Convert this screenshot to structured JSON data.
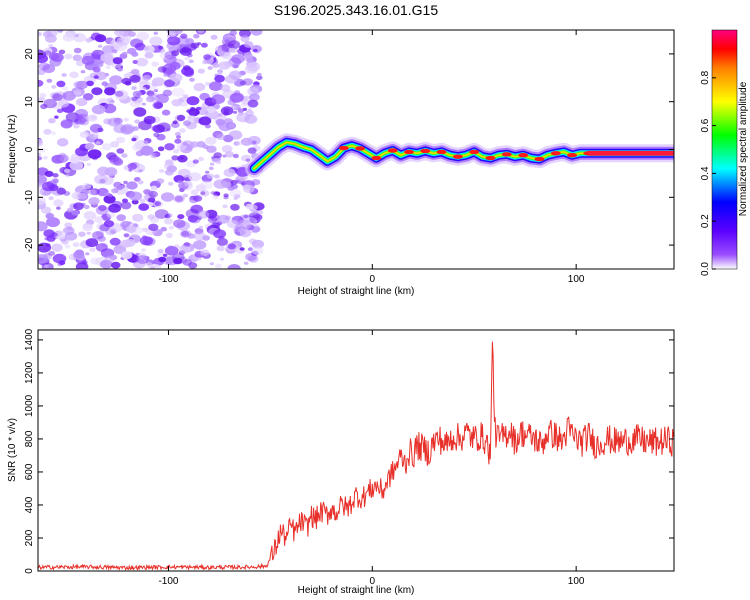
{
  "figure": {
    "title": "S196.2025.343.16.01.G15"
  },
  "chart_data": [
    {
      "type": "heatmap",
      "panel": "spectrogram",
      "xlabel": "Height of straight line (km)",
      "ylabel": "Frequency (Hz)",
      "xlim": [
        -164,
        148
      ],
      "ylim": [
        -25,
        25
      ],
      "xticks": [
        -100,
        0,
        100
      ],
      "xtick_labels": [
        "-100",
        "0",
        "100"
      ],
      "yticks": [
        -20,
        -10,
        0,
        10,
        20
      ],
      "ytick_labels": [
        "-20",
        "-10",
        "0",
        "10",
        "20"
      ],
      "noise_region_x": [
        -164,
        -58
      ],
      "signal_start_x": -58,
      "signal_track": [
        [
          -58,
          -4
        ],
        [
          -54,
          -2.5
        ],
        [
          -50,
          -1
        ],
        [
          -46,
          0.5
        ],
        [
          -42,
          1.5
        ],
        [
          -38,
          1.2
        ],
        [
          -34,
          0.5
        ],
        [
          -30,
          0
        ],
        [
          -26,
          -1.2
        ],
        [
          -22,
          -2.5
        ],
        [
          -18,
          -1.5
        ],
        [
          -14,
          0.3
        ],
        [
          -10,
          0.8
        ],
        [
          -6,
          0.2
        ],
        [
          -2,
          -0.8
        ],
        [
          2,
          -1.8
        ],
        [
          6,
          -0.8
        ],
        [
          10,
          -0.2
        ],
        [
          14,
          -1.2
        ],
        [
          18,
          -0.5
        ],
        [
          22,
          -0.8
        ],
        [
          26,
          -0.3
        ],
        [
          30,
          -0.8
        ],
        [
          34,
          -0.5
        ],
        [
          38,
          -1.2
        ],
        [
          42,
          -1.5
        ],
        [
          46,
          -1.2
        ],
        [
          50,
          -0.5
        ],
        [
          54,
          -1.5
        ],
        [
          58,
          -1.8
        ],
        [
          62,
          -1.2
        ],
        [
          66,
          -1.0
        ],
        [
          70,
          -1.5
        ],
        [
          74,
          -1.2
        ],
        [
          78,
          -1.8
        ],
        [
          82,
          -2.0
        ],
        [
          86,
          -1.2
        ],
        [
          90,
          -0.8
        ],
        [
          94,
          -0.5
        ],
        [
          98,
          -1.2
        ],
        [
          102,
          -0.8
        ],
        [
          106,
          -0.8
        ],
        [
          110,
          -0.8
        ],
        [
          120,
          -0.8
        ],
        [
          130,
          -0.8
        ],
        [
          140,
          -0.8
        ],
        [
          148,
          -0.8
        ]
      ],
      "colorbar": {
        "label": "Normalized spectral amplitude",
        "range": [
          0,
          1
        ],
        "ticks": [
          0.0,
          0.2,
          0.4,
          0.6,
          0.8
        ],
        "tick_labels": [
          "0.0",
          "0.2",
          "0.4",
          "0.6",
          "0.8"
        ],
        "colors": [
          "#ffffff",
          "#8000ff",
          "#0000ff",
          "#00ffff",
          "#00ff00",
          "#ffff00",
          "#ff8000",
          "#ff0000",
          "#ff0080"
        ]
      },
      "grid": false
    },
    {
      "type": "line",
      "panel": "snr",
      "xlabel": "Height of straight line (km)",
      "ylabel": "SNR (10 * v/v)",
      "xlim": [
        -164,
        148
      ],
      "ylim": [
        0,
        1460
      ],
      "xticks": [
        -100,
        0,
        100
      ],
      "xtick_labels": [
        "-100",
        "0",
        "100"
      ],
      "yticks": [
        0,
        200,
        400,
        600,
        800,
        1000,
        1200,
        1400
      ],
      "ytick_labels": [
        "0",
        "200",
        "400",
        "600",
        "800",
        "1000",
        "1200",
        "1400"
      ],
      "line_color": "#e8302a",
      "series": [
        {
          "name": "SNR",
          "x": [
            -164,
            -140,
            -120,
            -100,
            -80,
            -60,
            -52,
            -48,
            -45,
            -42,
            -40,
            -38,
            -35,
            -32,
            -30,
            -28,
            -25,
            -22,
            -20,
            -18,
            -15,
            -12,
            -10,
            -8,
            -5,
            -2,
            0,
            2,
            5,
            8,
            10,
            12,
            14,
            16,
            18,
            20,
            22,
            25,
            28,
            30,
            33,
            36,
            40,
            43,
            46,
            50,
            53,
            56,
            58,
            59,
            60,
            62,
            65,
            68,
            70,
            73,
            76,
            80,
            83,
            86,
            90,
            93,
            96,
            100,
            103,
            106,
            110,
            115,
            120,
            125,
            130,
            135,
            140,
            145,
            148
          ],
          "y": [
            22,
            25,
            20,
            24,
            22,
            24,
            30,
            120,
            240,
            200,
            280,
            230,
            300,
            260,
            340,
            310,
            360,
            340,
            380,
            350,
            400,
            380,
            420,
            460,
            440,
            480,
            500,
            520,
            480,
            560,
            600,
            640,
            700,
            650,
            720,
            700,
            760,
            740,
            720,
            780,
            800,
            760,
            820,
            800,
            840,
            800,
            820,
            780,
            700,
            1460,
            850,
            800,
            820,
            860,
            780,
            840,
            820,
            800,
            760,
            840,
            820,
            780,
            860,
            800,
            780,
            820,
            760,
            800,
            780,
            790,
            800,
            780,
            780,
            790,
            780
          ]
        }
      ],
      "grid": false
    }
  ]
}
